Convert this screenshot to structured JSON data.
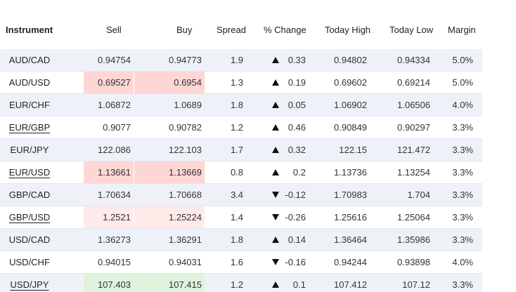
{
  "columns": {
    "instrument": "Instrument",
    "sell": "Sell",
    "buy": "Buy",
    "spread": "Spread",
    "change": "% Change",
    "high": "Today High",
    "low": "Today Low",
    "margin": "Margin"
  },
  "colors": {
    "sell_up_strong": "#ffd6d6",
    "sell_up_light": "#ffeaea",
    "green": "#def2dc",
    "row_alt": "#eef2f8"
  },
  "rows": [
    {
      "instrument": "AUD/CAD",
      "sell": "0.94754",
      "buy": "0.94773",
      "spread": "1.9",
      "dir": "up",
      "change": "0.33",
      "high": "0.94802",
      "low": "0.94334",
      "margin": "5.0%",
      "link": false,
      "hl": ""
    },
    {
      "instrument": "AUD/USD",
      "sell": "0.69527",
      "buy": "0.6954",
      "spread": "1.3",
      "dir": "up",
      "change": "0.19",
      "high": "0.69602",
      "low": "0.69214",
      "margin": "5.0%",
      "link": false,
      "hl": "red"
    },
    {
      "instrument": "EUR/CHF",
      "sell": "1.06872",
      "buy": "1.0689",
      "spread": "1.8",
      "dir": "up",
      "change": "0.05",
      "high": "1.06902",
      "low": "1.06506",
      "margin": "4.0%",
      "link": false,
      "hl": ""
    },
    {
      "instrument": "EUR/GBP",
      "sell": "0.9077",
      "buy": "0.90782",
      "spread": "1.2",
      "dir": "up",
      "change": "0.46",
      "high": "0.90849",
      "low": "0.90297",
      "margin": "3.3%",
      "link": true,
      "hl": ""
    },
    {
      "instrument": "EUR/JPY",
      "sell": "122.086",
      "buy": "122.103",
      "spread": "1.7",
      "dir": "up",
      "change": "0.32",
      "high": "122.15",
      "low": "121.472",
      "margin": "3.3%",
      "link": false,
      "hl": ""
    },
    {
      "instrument": "EUR/USD",
      "sell": "1.13661",
      "buy": "1.13669",
      "spread": "0.8",
      "dir": "up",
      "change": "0.2",
      "high": "1.13736",
      "low": "1.13254",
      "margin": "3.3%",
      "link": true,
      "hl": "red"
    },
    {
      "instrument": "GBP/CAD",
      "sell": "1.70634",
      "buy": "1.70668",
      "spread": "3.4",
      "dir": "down",
      "change": "-0.12",
      "high": "1.70983",
      "low": "1.704",
      "margin": "3.3%",
      "link": false,
      "hl": ""
    },
    {
      "instrument": "GBP/USD",
      "sell": "1.2521",
      "buy": "1.25224",
      "spread": "1.4",
      "dir": "down",
      "change": "-0.26",
      "high": "1.25616",
      "low": "1.25064",
      "margin": "3.3%",
      "link": true,
      "hl": "lightred"
    },
    {
      "instrument": "USD/CAD",
      "sell": "1.36273",
      "buy": "1.36291",
      "spread": "1.8",
      "dir": "up",
      "change": "0.14",
      "high": "1.36464",
      "low": "1.35986",
      "margin": "3.3%",
      "link": false,
      "hl": ""
    },
    {
      "instrument": "USD/CHF",
      "sell": "0.94015",
      "buy": "0.94031",
      "spread": "1.6",
      "dir": "down",
      "change": "-0.16",
      "high": "0.94244",
      "low": "0.93898",
      "margin": "4.0%",
      "link": false,
      "hl": ""
    },
    {
      "instrument": "USD/JPY",
      "sell": "107.403",
      "buy": "107.415",
      "spread": "1.2",
      "dir": "up",
      "change": "0.1",
      "high": "107.412",
      "low": "107.12",
      "margin": "3.3%",
      "link": true,
      "hl": "green"
    }
  ]
}
